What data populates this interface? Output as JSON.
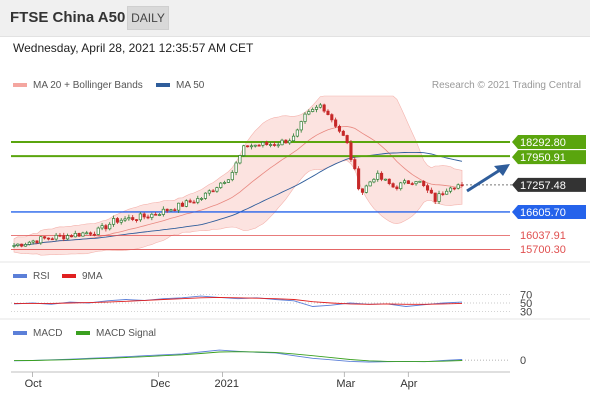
{
  "header": {
    "title": "FTSE China A50",
    "timeframe": "DAILY"
  },
  "datetime": "Wednesday, April 28, 2021 12:35:57 AM CET",
  "legend": {
    "main": [
      {
        "name": "MA 20 + Bollinger Bands",
        "color": "#f4a6a0"
      },
      {
        "name": "MA 50",
        "color": "#2f5d9b"
      }
    ],
    "rsi": [
      {
        "name": "RSI",
        "color": "#5b7fd8"
      },
      {
        "name": "9MA",
        "color": "#e02020"
      }
    ],
    "macd": [
      {
        "name": "MACD",
        "color": "#5b7fd8"
      },
      {
        "name": "MACD Signal",
        "color": "#3aa020"
      }
    ]
  },
  "credit": "Research © 2021 Trading Central",
  "colors": {
    "resistance": "#5aa50e",
    "support": "#2563eb",
    "lower_support": "#e05050",
    "last_price": "#333333",
    "arrow": "#2f5d9b",
    "candle_up": "#2e7d32",
    "candle_down": "#c62828"
  },
  "chart_data": [
    {
      "type": "candlestick",
      "x_ticks": [
        "Oct",
        "Dec",
        "2021",
        "Mar",
        "Apr"
      ],
      "y_range": [
        15400,
        19400
      ],
      "price_path": [
        [
          "2020-09-22",
          15800
        ],
        [
          "2020-10-05",
          15950
        ],
        [
          "2020-10-20",
          16050
        ],
        [
          "2020-11-02",
          16150
        ],
        [
          "2020-11-10",
          16400
        ],
        [
          "2020-11-25",
          16500
        ],
        [
          "2020-12-08",
          16700
        ],
        [
          "2020-12-22",
          16950
        ],
        [
          "2021-01-05",
          17500
        ],
        [
          "2021-01-12",
          18200
        ],
        [
          "2021-01-27",
          18250
        ],
        [
          "2021-02-05",
          18400
        ],
        [
          "2021-02-10",
          18900
        ],
        [
          "2021-02-18",
          19200
        ],
        [
          "2021-02-25",
          18700
        ],
        [
          "2021-03-02",
          18300
        ],
        [
          "2021-03-09",
          17050
        ],
        [
          "2021-03-16",
          17500
        ],
        [
          "2021-03-25",
          17200
        ],
        [
          "2021-04-05",
          17400
        ],
        [
          "2021-04-14",
          16900
        ],
        [
          "2021-04-21",
          17250
        ],
        [
          "2021-04-27",
          17257.48
        ]
      ],
      "levels": [
        {
          "label": "18292.80",
          "value": 18292.8,
          "kind": "resistance"
        },
        {
          "label": "17950.91",
          "value": 17950.91,
          "kind": "resistance"
        },
        {
          "label": "17257.48",
          "value": 17257.48,
          "kind": "last_price"
        },
        {
          "label": "16605.70",
          "value": 16605.7,
          "kind": "support"
        },
        {
          "label": "16037.91",
          "value": 16037.91,
          "kind": "lower_support"
        },
        {
          "label": "15700.30",
          "value": 15700.3,
          "kind": "lower_support"
        }
      ],
      "overlays": [
        "MA 20 + Bollinger Bands",
        "MA 50"
      ]
    },
    {
      "type": "line",
      "name": "RSI panel",
      "levels": [
        70,
        50,
        30
      ],
      "y_range": [
        20,
        80
      ],
      "series": [
        {
          "name": "RSI",
          "values": [
            48,
            50,
            47,
            52,
            50,
            55,
            58,
            56,
            60,
            62,
            66,
            63,
            60,
            62,
            58,
            55,
            42,
            45,
            50,
            47,
            48,
            42,
            46,
            50,
            52
          ]
        },
        {
          "name": "9MA",
          "values": [
            49,
            49,
            49,
            50,
            51,
            52,
            54,
            56,
            58,
            60,
            62,
            63,
            62,
            61,
            60,
            58,
            53,
            50,
            48,
            47,
            48,
            47,
            47,
            48,
            49
          ]
        }
      ]
    },
    {
      "type": "line",
      "name": "MACD panel",
      "levels": [
        0
      ],
      "y_range": [
        -250,
        450
      ],
      "series": [
        {
          "name": "MACD",
          "values": [
            -20,
            -10,
            10,
            30,
            60,
            80,
            110,
            140,
            170,
            200,
            260,
            320,
            280,
            250,
            230,
            140,
            60,
            10,
            -40,
            -60,
            -50,
            -40,
            -50,
            -10,
            20
          ]
        },
        {
          "name": "MACD Signal",
          "values": [
            -15,
            -10,
            0,
            15,
            40,
            60,
            85,
            110,
            140,
            170,
            210,
            260,
            270,
            260,
            245,
            200,
            140,
            80,
            20,
            -20,
            -40,
            -45,
            -45,
            -35,
            -10
          ]
        }
      ]
    }
  ]
}
